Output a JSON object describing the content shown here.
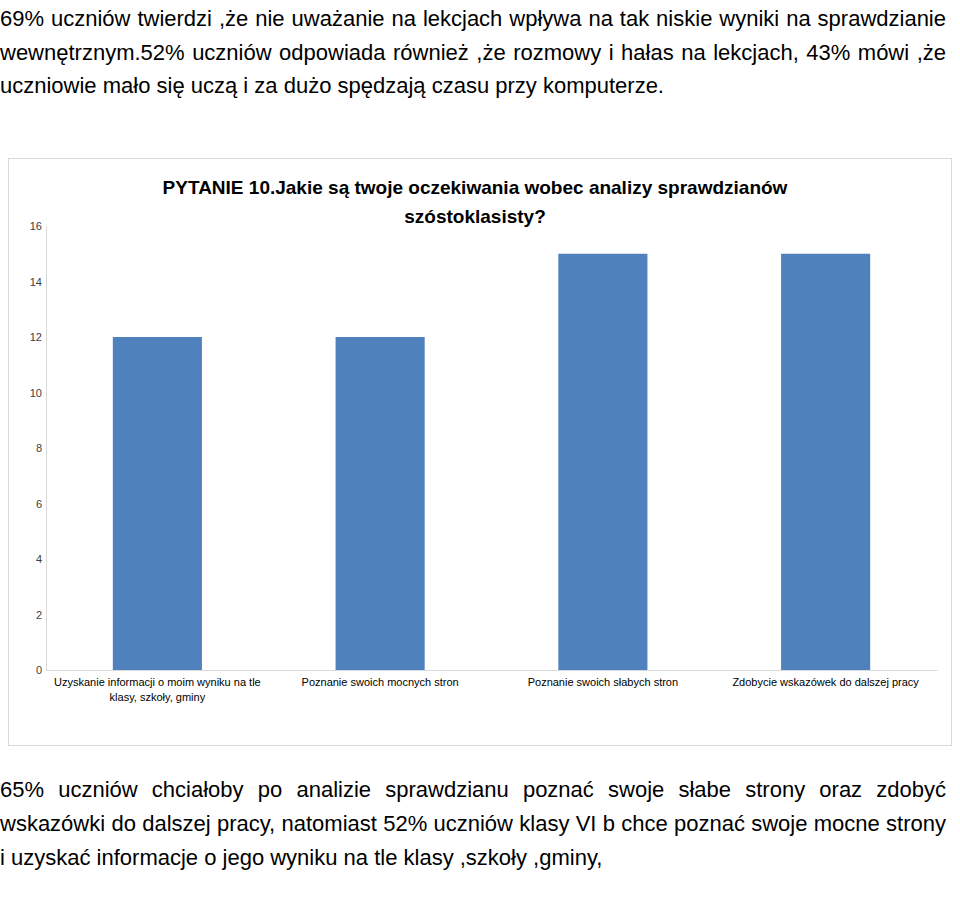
{
  "paragraphs_before": [
    "69% uczniów twierdzi ,że nie uważanie na lekcjach wpływa na tak niskie wyniki na sprawdzianie wewnętrznym.52% uczniów odpowiada również ,że rozmowy i hałas na lekcjach, 43% mówi ,że uczniowie mało się uczą i  za dużo spędzają czasu przy komputerze."
  ],
  "chart_data": {
    "type": "bar",
    "title": "PYTANIE 10.Jakie są twoje oczekiwania wobec analizy sprawdzianów szóstoklasisty?",
    "categories": [
      "Uzyskanie informacji o moim wyniku na tle klasy, szkoły, gminy",
      "Poznanie swoich mocnych stron",
      "Poznanie swoich słabych stron",
      "Zdobycie wskazówek do dalszej pracy"
    ],
    "values": [
      12,
      12,
      15,
      15
    ],
    "color": "#4f81bd",
    "ylim": [
      0,
      16
    ],
    "yticks": [
      0,
      2,
      4,
      6,
      8,
      10,
      12,
      14,
      16
    ],
    "grid": false
  },
  "paragraphs_after": [
    "65% uczniów chciałoby po analizie sprawdzianu poznać swoje słabe strony oraz zdobyć wskazówki do dalszej pracy, natomiast 52% uczniów klasy VI b chce poznać swoje mocne strony i uzyskać informacje o jego wyniku na tle klasy ,szkoły ,gminy,"
  ]
}
